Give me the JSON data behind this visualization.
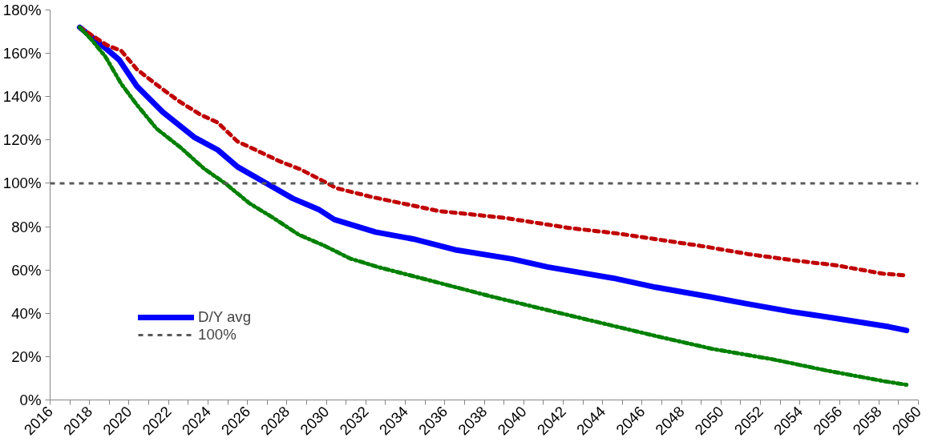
{
  "chart_data": {
    "type": "line",
    "xlim": [
      2016,
      2060
    ],
    "ylim": [
      0,
      180
    ],
    "xticks": [
      2016,
      {
        "value": 2017,
        "label": null
      },
      2018,
      {
        "value": 2019,
        "label": null
      },
      2020,
      {
        "value": 2021,
        "label": null
      },
      2022,
      {
        "value": 2023,
        "label": null
      },
      2024,
      {
        "value": 2025,
        "label": null
      },
      2026,
      {
        "value": 2027,
        "label": null
      },
      2028,
      {
        "value": 2029,
        "label": null
      },
      2030,
      {
        "value": 2031,
        "label": null
      },
      2032,
      {
        "value": 2033,
        "label": null
      },
      2034,
      {
        "value": 2035,
        "label": null
      },
      2036,
      {
        "value": 2037,
        "label": null
      },
      2038,
      {
        "value": 2039,
        "label": null
      },
      2040,
      {
        "value": 2041,
        "label": null
      },
      2042,
      {
        "value": 2043,
        "label": null
      },
      2044,
      {
        "value": 2045,
        "label": null
      },
      2046,
      {
        "value": 2047,
        "label": null
      },
      2048,
      {
        "value": 2049,
        "label": null
      },
      2050,
      {
        "value": 2051,
        "label": null
      },
      2052,
      {
        "value": 2053,
        "label": null
      },
      2054,
      {
        "value": 2055,
        "label": null
      },
      2056,
      {
        "value": 2057,
        "label": null
      },
      2058,
      {
        "value": 2059,
        "label": null
      },
      2060
    ],
    "yticks": [
      {
        "value": 0,
        "label": "0%"
      },
      {
        "value": 20,
        "label": "20%"
      },
      {
        "value": 40,
        "label": "40%"
      },
      {
        "value": 60,
        "label": "60%"
      },
      {
        "value": 80,
        "label": "80%"
      },
      {
        "value": 100,
        "label": "100%"
      },
      {
        "value": 120,
        "label": "120%"
      },
      {
        "value": 140,
        "label": "140%"
      },
      {
        "value": 160,
        "label": "160%"
      },
      {
        "value": 180,
        "label": "180%"
      }
    ],
    "grid": false,
    "legend": "bottom left",
    "marker": "none",
    "series": [
      {
        "name": "D/Y avg",
        "color": "#0000ff",
        "line_style": "solid",
        "x": [
          2017.5,
          2018.9,
          2019.5,
          2020.4,
          2021.7,
          2023.3,
          2024.5,
          2025.5,
          2027.0,
          2028.3,
          2029.6,
          2030.4,
          2032.5,
          2034.4,
          2036.6,
          2039.4,
          2041.2,
          2044.5,
          2046.7,
          2049.4,
          2051.2,
          2053.6,
          2055.6,
          2058.5,
          2059.4
        ],
        "values": [
          172,
          161.7,
          157,
          144.8,
          133,
          121.3,
          115.4,
          107.6,
          99.8,
          93,
          88,
          83.3,
          77.5,
          74.3,
          69.2,
          65.1,
          61.4,
          56.3,
          52,
          47.7,
          44.6,
          40.7,
          38,
          33.8,
          32.1
        ]
      },
      {
        "color": "#c00000",
        "line_style": "dashed",
        "x": [
          2017.5,
          2018.9,
          2019.6,
          2020.4,
          2021.4,
          2022.5,
          2023.6,
          2024.5,
          2025.5,
          2026.7,
          2027.6,
          2028.7,
          2029.7,
          2030.5,
          2032.2,
          2035.7,
          2039.0,
          2042.3,
          2044.8,
          2049.2,
          2051.4,
          2053.8,
          2055.8,
          2058.2,
          2059.4
        ],
        "values": [
          172,
          163.7,
          161.2,
          152.6,
          145.5,
          138.1,
          131.8,
          128,
          119.3,
          114.2,
          110.3,
          106.4,
          101.7,
          97.8,
          93.9,
          87.2,
          84.1,
          79.4,
          76.8,
          70.8,
          67.3,
          64.3,
          62.2,
          58.3,
          57.5
        ]
      },
      {
        "color": "#008000",
        "line_style": "dashdot",
        "x": [
          2017.5,
          2018.1,
          2018.8,
          2019.6,
          2020.4,
          2021.4,
          2022.6,
          2023.8,
          2024.9,
          2026.1,
          2027.3,
          2028.6,
          2029.9,
          2031.2,
          2032.6,
          2035.4,
          2038.3,
          2041.2,
          2043.9,
          2046.8,
          2049.6,
          2052.6,
          2055.4,
          2058.3,
          2059.4
        ],
        "values": [
          172,
          166.3,
          158.5,
          146,
          136.2,
          125.2,
          116.6,
          106.8,
          99.8,
          90.8,
          84.1,
          76.3,
          71.2,
          65.3,
          61.4,
          54.8,
          47.9,
          41.5,
          35.6,
          29.3,
          23.5,
          18.8,
          13.5,
          8.6,
          7.0
        ]
      }
    ],
    "ref_lines": [
      {
        "axis": "y",
        "value": 100,
        "label": "100%",
        "color": "#595959",
        "line_style": "dashed"
      }
    ]
  }
}
